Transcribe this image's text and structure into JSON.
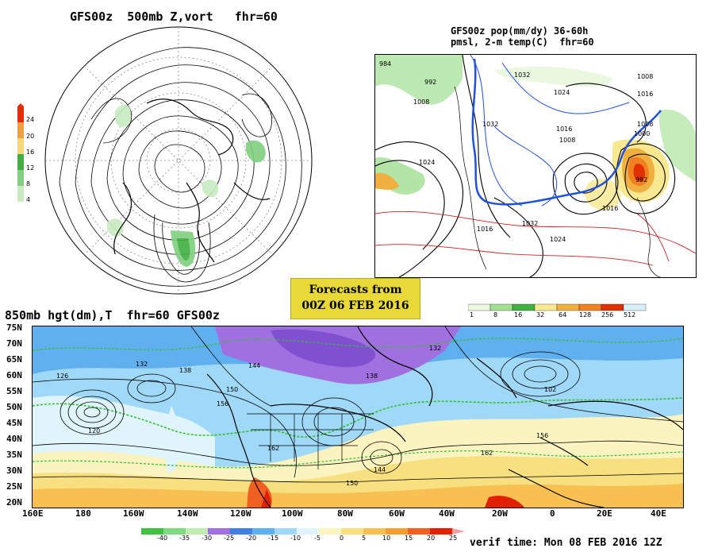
{
  "panel_500mb": {
    "title": "GFS00z  500mb Z,vort   fhr=60",
    "colorbar_labels": [
      "24",
      "20",
      "16",
      "12",
      "8",
      "4"
    ],
    "colors": [
      "#e03000",
      "#f0a040",
      "#f8d878",
      "#40b040",
      "#80d080",
      "#c8ecc0"
    ]
  },
  "panel_precip": {
    "title_line1": "GFS00z pop(mm/dy) 36-60h",
    "title_line2": "pmsl, 2-m temp(C)  fhr=60",
    "colorbar_labels": [
      "1",
      "8",
      "16",
      "32",
      "64",
      "128",
      "256",
      "512"
    ],
    "colors": [
      "#eaf8e0",
      "#a0e090",
      "#40b040",
      "#f8e890",
      "#f0b040",
      "#f08020",
      "#e03000",
      "#d8f0f8"
    ]
  },
  "forecast_box": {
    "line1": "Forecasts from",
    "line2": "00Z 06 FEB 2016"
  },
  "panel_850mb": {
    "title": "850mb hgt(dm),T  fhr=60 GFS00z",
    "lat_labels": [
      "75N",
      "70N",
      "65N",
      "60N",
      "55N",
      "50N",
      "45N",
      "40N",
      "35N",
      "30N",
      "25N",
      "20N"
    ],
    "lon_labels": [
      "160E",
      "180",
      "160W",
      "140W",
      "120W",
      "100W",
      "80W",
      "60W",
      "40W",
      "20W",
      "0",
      "20E",
      "40E"
    ],
    "colorbar_labels": [
      "-40",
      "-35",
      "-30",
      "-25",
      "-20",
      "-15",
      "-10",
      "-5",
      "0",
      "5",
      "10",
      "15",
      "20",
      "25"
    ],
    "colors": [
      "#40c040",
      "#80d880",
      "#c0ecb0",
      "#a070e0",
      "#4080e0",
      "#60b0f0",
      "#a0d8f8",
      "#e0f4fc",
      "#fcf4c0",
      "#f8e080",
      "#f8c050",
      "#f0a030",
      "#f06020",
      "#e02000"
    ],
    "contour_labels": [
      "126",
      "132",
      "138",
      "144",
      "150",
      "156",
      "162",
      "120",
      "102",
      "144",
      "150",
      "162",
      "156",
      "132",
      "138"
    ]
  },
  "verif_time": "verif time: Mon 08 FEB 2016 12Z"
}
